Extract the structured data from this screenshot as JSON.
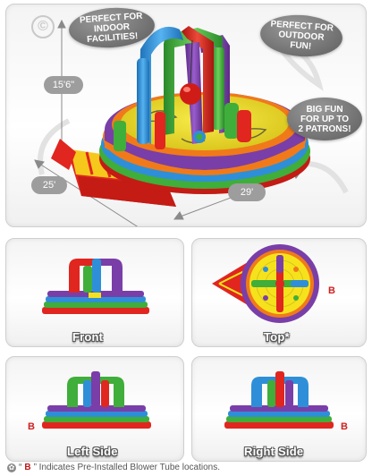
{
  "main": {
    "bubbles": {
      "indoor": [
        "PERFECT FOR",
        "INDOOR",
        "FACILITIES!"
      ],
      "outdoor": [
        "PERFECT FOR",
        "OUTDOOR",
        "FUN!"
      ],
      "patrons": [
        "BIG FUN",
        "FOR UP TO",
        "2 PATRONS!"
      ]
    },
    "dimensions": {
      "height": "15'6\"",
      "depth": "25'",
      "width": "29'"
    },
    "copyright_symbol": "©"
  },
  "views": {
    "front": "Front",
    "top": "Top*",
    "left": "Left Side",
    "right": "Right Side",
    "b_mark": "B"
  },
  "footnote": {
    "quote_open": "“",
    "b": "B",
    "text": "” Indicates Pre-Installed Blower Tube locations."
  },
  "colors": {
    "red": "#e0261f",
    "orange": "#f07a1a",
    "yellow": "#f6e21c",
    "green": "#3fae3a",
    "blue": "#2e8fd8",
    "purple": "#7a3ea8",
    "gray_bubble": "#6f6f6f"
  }
}
